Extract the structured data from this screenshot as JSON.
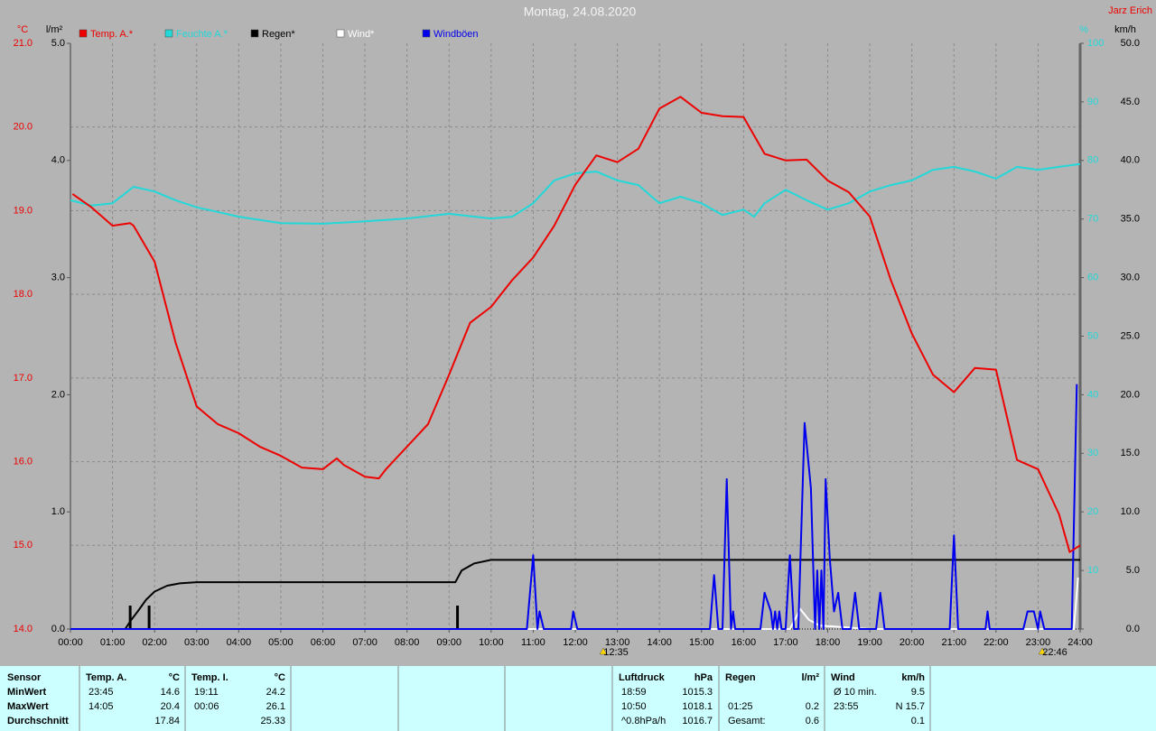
{
  "chart_data": {
    "type": "line",
    "title": "Montag, 24.08.2020",
    "author": "Jarz Erich",
    "ylabel": "°C",
    "y2label": "l/m²",
    "y3label": "%",
    "y4label": "km/h",
    "xlim": [
      0,
      24
    ],
    "xticks": [
      {
        "value": 0,
        "label": "00:00"
      },
      {
        "value": 1,
        "label": "01:00"
      },
      {
        "value": 2,
        "label": "02:00"
      },
      {
        "value": 3,
        "label": "03:00"
      },
      {
        "value": 4,
        "label": "04:00"
      },
      {
        "value": 5,
        "label": "05:00"
      },
      {
        "value": 6,
        "label": "06:00"
      },
      {
        "value": 7,
        "label": "07:00"
      },
      {
        "value": 8,
        "label": "08:00"
      },
      {
        "value": 9,
        "label": "09:00"
      },
      {
        "value": 10,
        "label": "10:00"
      },
      {
        "value": 11,
        "label": "11:00"
      },
      {
        "value": 12,
        "label": "12:00"
      },
      {
        "value": 13,
        "label": "13:00"
      },
      {
        "value": 14,
        "label": "14:00"
      },
      {
        "value": 15,
        "label": "15:00"
      },
      {
        "value": 16,
        "label": "16:00"
      },
      {
        "value": 17,
        "label": "17:00"
      },
      {
        "value": 18,
        "label": "18:00"
      },
      {
        "value": 19,
        "label": "19:00"
      },
      {
        "value": 20,
        "label": "20:00"
      },
      {
        "value": 21,
        "label": "21:00"
      },
      {
        "value": 22,
        "label": "22:00"
      },
      {
        "value": 23,
        "label": "23:00"
      },
      {
        "value": 24,
        "label": "24:00"
      }
    ],
    "ylim": [
      14,
      21
    ],
    "yticks": [
      {
        "value": 14,
        "label": "14.0"
      },
      {
        "value": 15,
        "label": "15.0"
      },
      {
        "value": 16,
        "label": "16.0"
      },
      {
        "value": 17,
        "label": "17.0"
      },
      {
        "value": 18,
        "label": "18.0"
      },
      {
        "value": 19,
        "label": "19.0"
      },
      {
        "value": 20,
        "label": "20.0"
      },
      {
        "value": 21,
        "label": "21.0"
      }
    ],
    "y2lim": [
      0,
      5
    ],
    "y2ticks": [
      {
        "value": 0,
        "label": "0.0"
      },
      {
        "value": 1,
        "label": "1.0"
      },
      {
        "value": 2,
        "label": "2.0"
      },
      {
        "value": 3,
        "label": "3.0"
      },
      {
        "value": 4,
        "label": "4.0"
      },
      {
        "value": 5,
        "label": "5.0"
      }
    ],
    "y3lim": [
      0,
      100
    ],
    "y3ticks": [
      10,
      20,
      30,
      40,
      50,
      60,
      70,
      80,
      90,
      100
    ],
    "y4lim": [
      0,
      50
    ],
    "y4ticks": [
      {
        "value": 0,
        "label": "0.0"
      },
      {
        "value": 5,
        "label": "5.0"
      },
      {
        "value": 10,
        "label": "10.0"
      },
      {
        "value": 15,
        "label": "15.0"
      },
      {
        "value": 20,
        "label": "20.0"
      },
      {
        "value": 25,
        "label": "25.0"
      },
      {
        "value": 30,
        "label": "30.0"
      },
      {
        "value": 35,
        "label": "35.0"
      },
      {
        "value": 40,
        "label": "40.0"
      },
      {
        "value": 45,
        "label": "45.0"
      },
      {
        "value": 50,
        "label": "50.0"
      }
    ],
    "grid": true,
    "annotations": [
      "12:35",
      "22:46"
    ],
    "series": [
      {
        "name": "Temp. A.*",
        "color": "#ee0000",
        "axis": "y",
        "x": [
          0.05,
          0.5,
          1,
          1.42,
          1.5,
          2,
          2.5,
          3,
          3.5,
          4,
          4.5,
          5,
          5.5,
          6,
          6.33,
          6.5,
          7,
          7.33,
          7.5,
          8,
          8.5,
          9,
          9.5,
          10,
          10.5,
          11,
          11.5,
          12,
          12.5,
          13,
          13.5,
          14,
          14.5,
          15,
          15.5,
          16,
          16.5,
          17,
          17.5,
          18,
          18.5,
          19,
          19.5,
          20,
          20.5,
          21,
          21.5,
          22,
          22.5,
          23,
          23.5,
          23.75,
          24
        ],
        "values": [
          19.2,
          19.04,
          18.82,
          18.85,
          18.82,
          18.39,
          17.42,
          16.66,
          16.45,
          16.34,
          16.18,
          16.07,
          15.93,
          15.91,
          16.04,
          15.96,
          15.82,
          15.8,
          15.91,
          16.18,
          16.45,
          17.04,
          17.66,
          17.85,
          18.17,
          18.44,
          18.82,
          19.31,
          19.66,
          19.58,
          19.74,
          20.22,
          20.36,
          20.17,
          20.13,
          20.12,
          19.68,
          19.6,
          19.61,
          19.36,
          19.22,
          18.93,
          18.17,
          17.53,
          17.04,
          16.83,
          17.12,
          17.1,
          16.02,
          15.91,
          15.37,
          14.92,
          15.0
        ]
      },
      {
        "name": "Feuchte A.*",
        "color": "#22d8d8",
        "axis": "y3",
        "x": [
          0,
          0.5,
          1,
          1.5,
          2,
          2.5,
          3,
          4,
          5,
          6,
          7,
          8,
          9,
          10,
          10.5,
          11,
          11.5,
          12,
          12.5,
          13,
          13.5,
          14,
          14.5,
          15,
          15.5,
          16,
          16.25,
          16.5,
          17,
          17.5,
          18,
          18.5,
          19,
          19.5,
          20,
          20.5,
          21,
          21.5,
          22,
          22.5,
          23,
          23.5,
          24
        ],
        "values": [
          73.2,
          72.3,
          72.7,
          75.5,
          74.7,
          73.2,
          72,
          70.4,
          69.3,
          69.2,
          69.6,
          70.1,
          70.9,
          70.1,
          70.4,
          72.7,
          76.6,
          77.8,
          78.1,
          76.6,
          75.8,
          72.7,
          73.8,
          72.7,
          70.7,
          71.6,
          70.4,
          72.7,
          75,
          73.2,
          71.6,
          72.7,
          74.7,
          75.8,
          76.6,
          78.4,
          78.9,
          78.1,
          76.9,
          78.9,
          78.4,
          78.9,
          79.4
        ]
      },
      {
        "name": "Regen*",
        "color": "#000000",
        "axis": "y2",
        "x": [
          0,
          1.3,
          1.45,
          1.6,
          1.8,
          2,
          2.3,
          2.6,
          3,
          9.15,
          9.3,
          9.6,
          10,
          24
        ],
        "values": [
          0,
          0,
          0.08,
          0.15,
          0.25,
          0.32,
          0.37,
          0.39,
          0.4,
          0.4,
          0.5,
          0.56,
          0.59,
          0.59
        ],
        "bars": {
          "x": [
            1.42,
            1.87,
            9.2
          ],
          "values": [
            0.2,
            0.2,
            0.2
          ]
        }
      },
      {
        "name": "Wind*",
        "color": "#ffffff",
        "axis": "y4",
        "x": [
          0,
          17.1,
          17.35,
          17.55,
          17.8,
          18.2,
          18.6,
          19,
          23.85,
          23.95
        ],
        "values": [
          0,
          0,
          1.7,
          0.8,
          0.3,
          0.2,
          0.1,
          0,
          0,
          4.4
        ]
      },
      {
        "name": "Windböen",
        "color": "#0000ee",
        "axis": "y4",
        "x": [
          0,
          10.85,
          11,
          11.1,
          11.15,
          11.25,
          11.9,
          11.95,
          12.05,
          15.2,
          15.3,
          15.4,
          15.5,
          15.6,
          15.7,
          15.75,
          15.8,
          16.4,
          16.5,
          16.65,
          16.7,
          16.75,
          16.8,
          16.85,
          16.9,
          17,
          17.1,
          17.2,
          17.3,
          17.45,
          17.6,
          17.7,
          17.75,
          17.8,
          17.85,
          17.9,
          17.95,
          18.05,
          18.15,
          18.25,
          18.35,
          18.55,
          18.65,
          18.75,
          19.15,
          19.25,
          19.35,
          20.9,
          21,
          21.1,
          21.75,
          21.8,
          21.85,
          22.65,
          22.75,
          22.9,
          23,
          23.05,
          23.15,
          23.8,
          23.92
        ],
        "values": [
          0,
          0,
          6.3,
          0,
          1.5,
          0,
          0,
          1.5,
          0,
          0,
          4.6,
          0,
          0,
          12.8,
          0,
          1.5,
          0,
          0,
          3.1,
          1.5,
          0,
          1.5,
          0,
          1.5,
          0,
          0,
          6.3,
          0,
          0,
          17.6,
          12,
          0,
          5,
          0,
          5,
          0,
          12.8,
          6,
          1.5,
          3.1,
          0,
          0,
          3.1,
          0,
          0,
          3.1,
          0,
          0,
          8,
          0,
          0,
          1.5,
          0,
          0,
          1.5,
          1.5,
          0,
          1.5,
          0,
          0,
          20.9
        ]
      }
    ]
  },
  "table": {
    "row_labels": [
      "Sensor",
      "MinWert",
      "MaxWert",
      "Durchschnitt"
    ],
    "columns": [
      {
        "title": "Temp. A.",
        "unit": "°C",
        "rows": [
          [
            "23:45",
            "14.6"
          ],
          [
            "14:05",
            "20.4"
          ],
          [
            null,
            "17.84"
          ]
        ]
      },
      {
        "title": "Temp. I.",
        "unit": "°C",
        "rows": [
          [
            "19:11",
            "24.2"
          ],
          [
            "00:06",
            "26.1"
          ],
          [
            null,
            "25.33"
          ]
        ]
      },
      {
        "title": "Luftdruck",
        "unit": "hPa",
        "rows": [
          [
            "18:59",
            "1015.3"
          ],
          [
            "10:50",
            "1018.1"
          ],
          [
            "^0.8hPa/h",
            "1016.7"
          ]
        ]
      },
      {
        "title": "Regen",
        "unit": "l/m²",
        "rows": [
          [
            null,
            null
          ],
          [
            "01:25",
            "0.2"
          ],
          [
            "Gesamt:",
            "0.6"
          ]
        ]
      },
      {
        "title": "Wind",
        "unit": "km/h",
        "rows": [
          [
            "Ø 10 min.",
            "9.5"
          ],
          [
            "23:55",
            "N 15.7"
          ],
          [
            null,
            "0.1"
          ]
        ]
      }
    ]
  }
}
